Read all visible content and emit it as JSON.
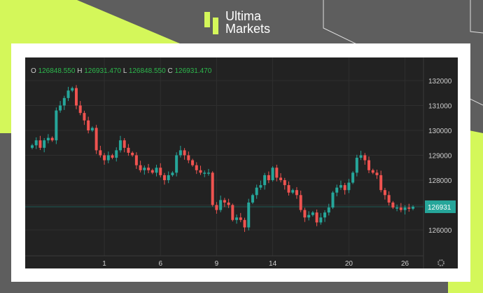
{
  "brand": {
    "line1": "Ultima",
    "line2": "Markets",
    "accent": "#d4f75a"
  },
  "ohlc": {
    "o_label": "O",
    "o": "126848.550",
    "h_label": "H",
    "h": "126931.470",
    "l_label": "L",
    "l": "126848.550",
    "c_label": "C",
    "c": "126931.470"
  },
  "chart_data": {
    "type": "candlestick",
    "ylim": [
      125000,
      132600
    ],
    "y_ticks": [
      126000,
      127000,
      128000,
      129000,
      130000,
      131000,
      132000
    ],
    "y_tick_labels": [
      "126000",
      "128000",
      "129000",
      "130000",
      "131000",
      "132000"
    ],
    "x_ticks": [
      {
        "index": 18,
        "label": "1"
      },
      {
        "index": 32,
        "label": "6"
      },
      {
        "index": 46,
        "label": "9"
      },
      {
        "index": 60,
        "label": "14"
      },
      {
        "index": 79,
        "label": "20"
      },
      {
        "index": 93,
        "label": "26"
      }
    ],
    "last_price": "126931",
    "last_price_value": 126931,
    "up_color": "#26a69a",
    "down_color": "#ef5350",
    "grid": true,
    "close": [
      129400,
      129600,
      129300,
      129600,
      129700,
      129600,
      130800,
      131000,
      131300,
      131600,
      131700,
      131000,
      130700,
      130400,
      130000,
      130100,
      129200,
      129000,
      128800,
      129000,
      128900,
      129200,
      129600,
      129300,
      129100,
      129000,
      128600,
      128400,
      128500,
      128400,
      128300,
      128500,
      128200,
      128000,
      128200,
      128300,
      129000,
      129200,
      129000,
      128800,
      128600,
      128400,
      128300,
      128300,
      128300,
      127000,
      126800,
      127200,
      127100,
      127000,
      126400,
      126500,
      126400,
      126100,
      127100,
      127400,
      127700,
      127800,
      128200,
      128000,
      128500,
      128100,
      128000,
      127800,
      127500,
      127600,
      127400,
      126800,
      126500,
      126600,
      126700,
      126300,
      126500,
      126700,
      126900,
      127500,
      127700,
      127800,
      127600,
      127900,
      128300,
      128900,
      129000,
      128800,
      128400,
      128300,
      128200,
      127600,
      127400,
      127100,
      126900,
      126900,
      126800,
      126900,
      126850,
      126931
    ]
  }
}
